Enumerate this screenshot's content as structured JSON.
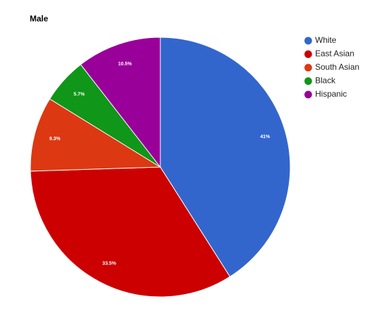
{
  "chart_data": {
    "type": "pie",
    "title": "Male",
    "categories": [
      "White",
      "East Asian",
      "South Asian",
      "Black",
      "Hispanic"
    ],
    "values": [
      41,
      33.5,
      9.3,
      5.7,
      10.5
    ],
    "value_labels": [
      "41%",
      "33.5%",
      "9.3%",
      "5.7%",
      "10.5%"
    ],
    "colors": [
      "#3366cc",
      "#cc0000",
      "#dc3912",
      "#109618",
      "#990099"
    ],
    "start_angle_deg": 0,
    "direction": "clockwise",
    "legend_position": "right"
  }
}
